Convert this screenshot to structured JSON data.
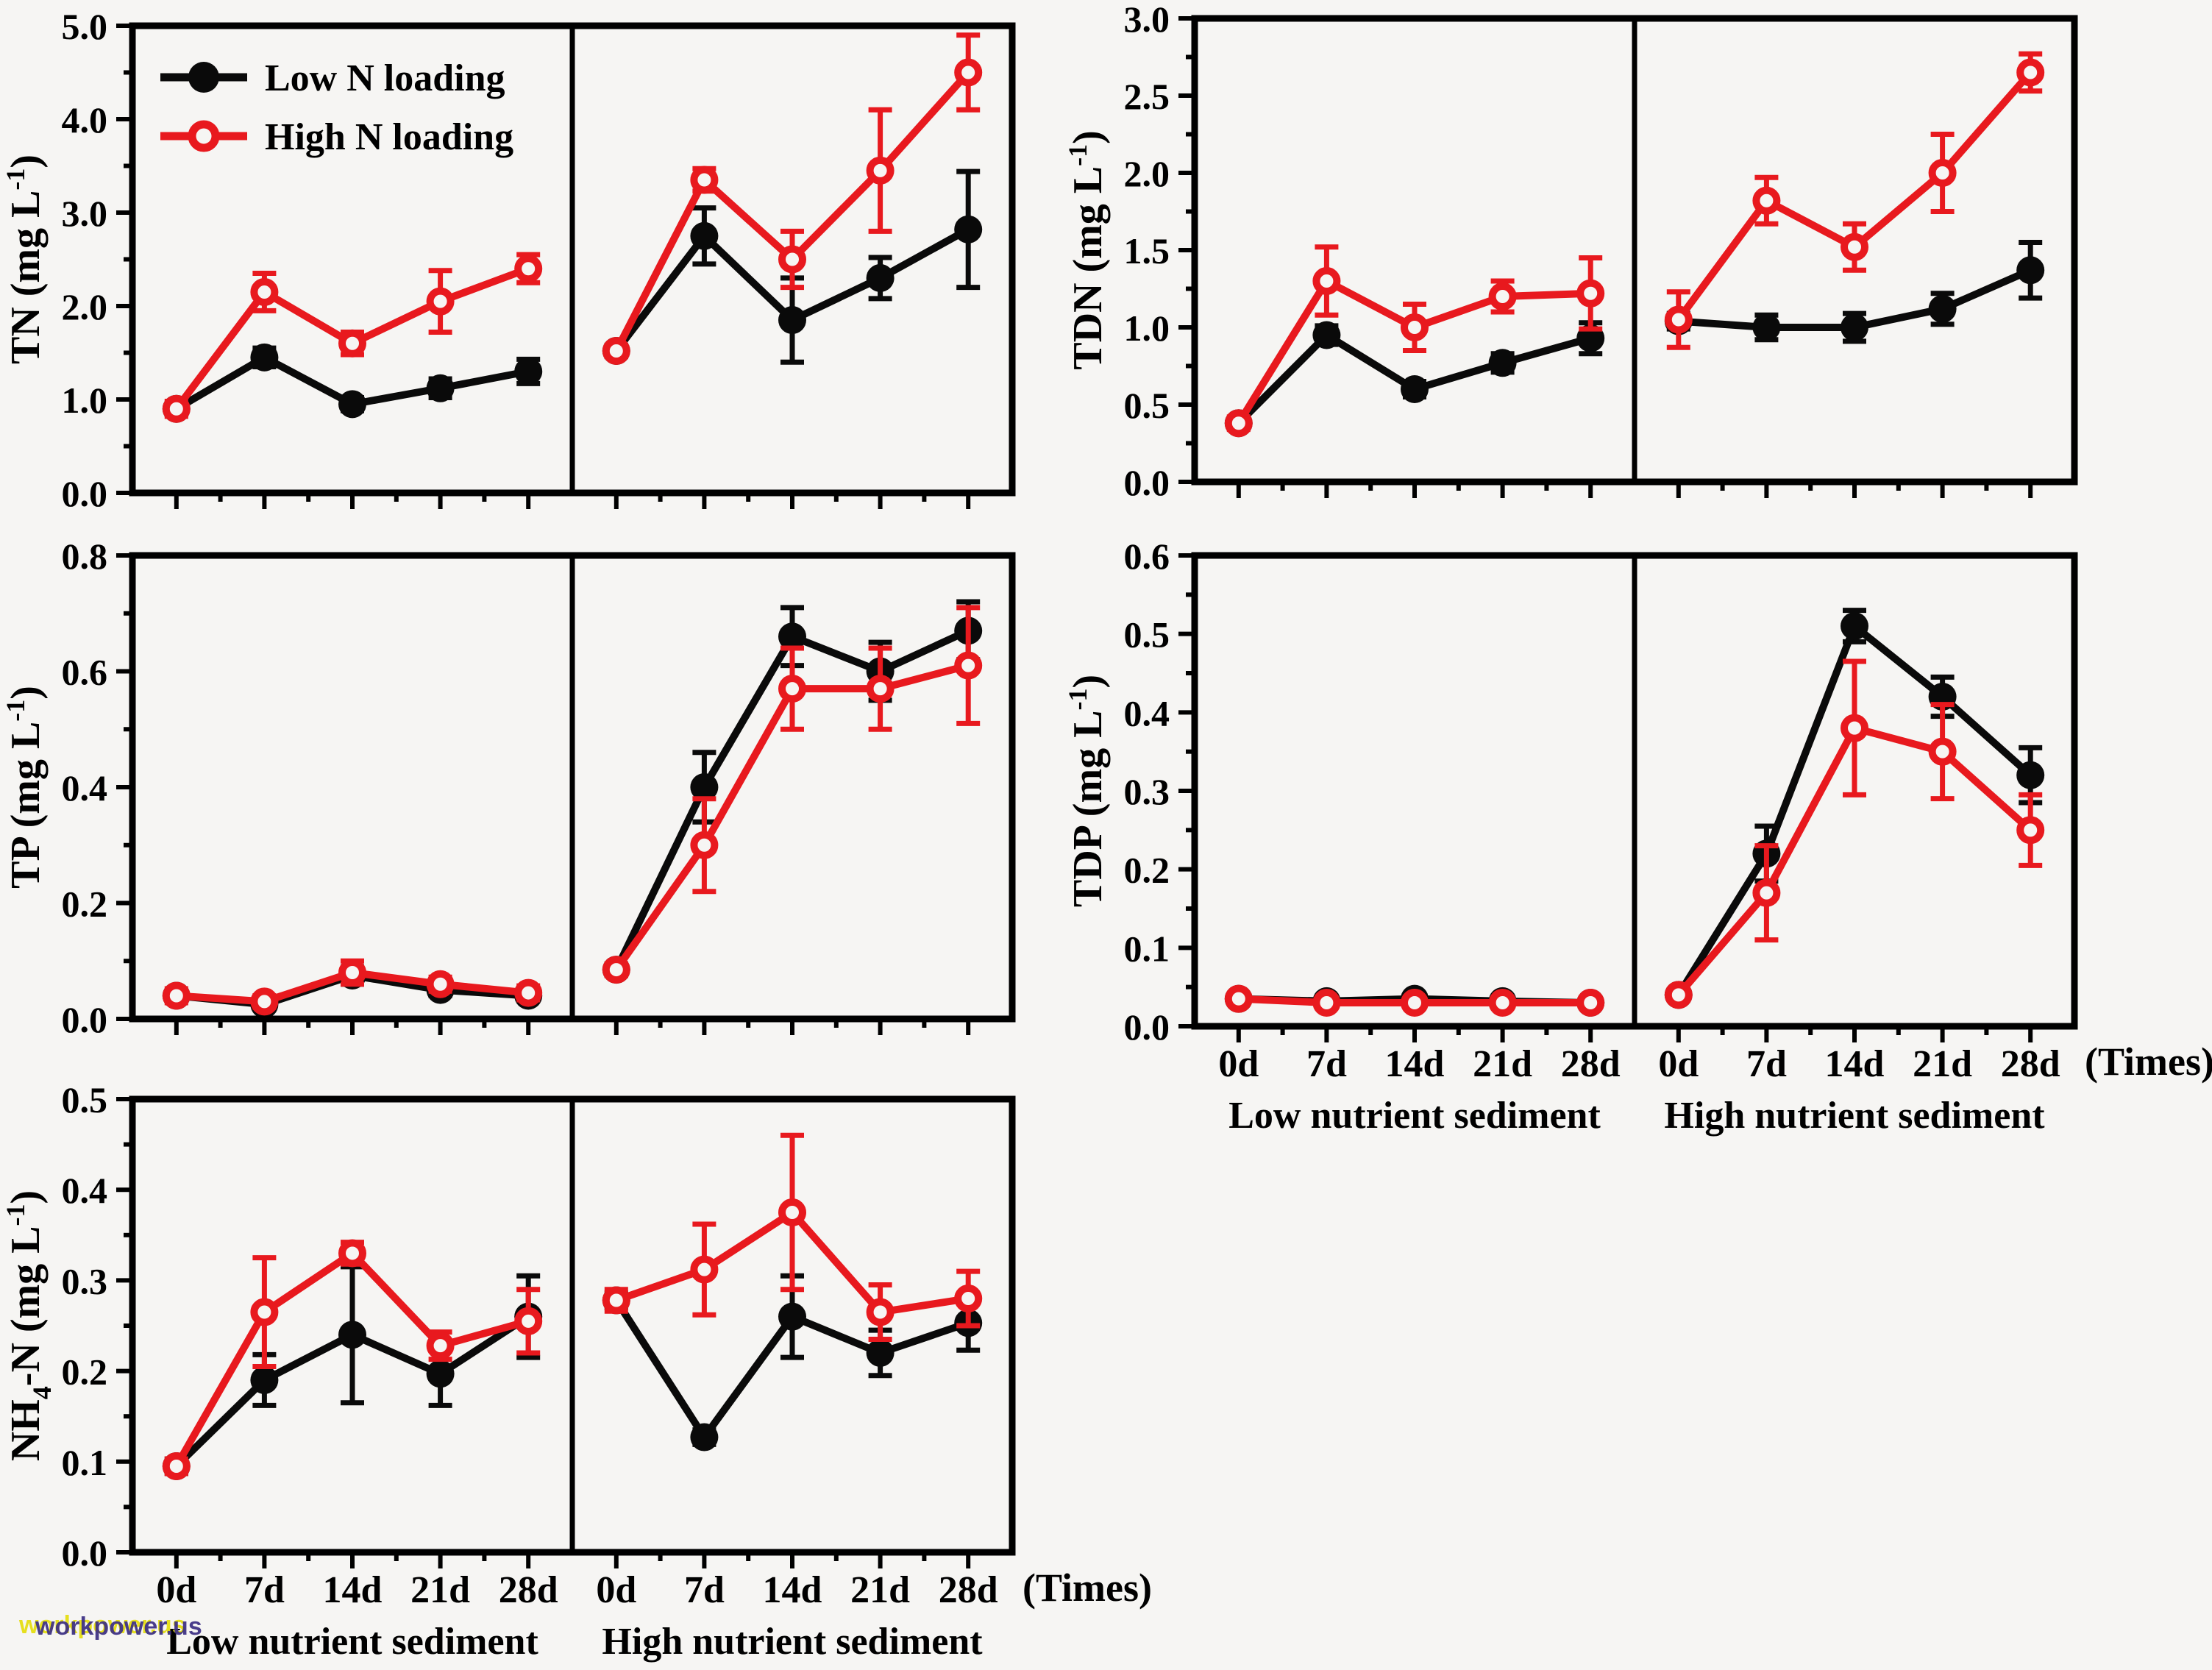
{
  "figure": {
    "background": "#f6f5f3",
    "colors": {
      "black": "#0a0a0a",
      "red": "#e8191e",
      "axis": "#000000",
      "text": "#000000"
    },
    "watermark": {
      "text": "workpower.us",
      "back_color": "#e6df1e",
      "front_color": "#3b2e83"
    }
  },
  "legend": {
    "position": "top-left-of-TN-panel",
    "items": [
      {
        "label": "Low N loading",
        "marker": "filled-circle",
        "color_key": "black"
      },
      {
        "label": "High N loading",
        "marker": "open-circle",
        "color_key": "red"
      }
    ]
  },
  "x_axis": {
    "categories": [
      "0d",
      "7d",
      "14d",
      "21d",
      "28d"
    ],
    "suffix_label": "(Times)",
    "group_labels": [
      "Low nutrient sediment",
      "High nutrient sediment"
    ]
  },
  "chart_data": [
    {
      "type": "line",
      "id": "tn",
      "ylabel_parts": [
        {
          "t": "TN (mg L"
        },
        {
          "t": "-1",
          "style": "sup"
        },
        {
          "t": ")"
        }
      ],
      "ylim": [
        0,
        5
      ],
      "ytick_major": 1.0,
      "ytick_minor": 0.5,
      "ytick_decimals": 1,
      "grid": false,
      "show_x_tick_labels": false,
      "show_group_labels": false,
      "show_times_label": false,
      "groups": [
        {
          "name": "Low nutrient sediment",
          "series": [
            {
              "name": "Low N loading",
              "color_key": "black",
              "values": [
                0.9,
                1.45,
                0.95,
                1.12,
                1.3
              ],
              "errors": [
                0.06,
                0.1,
                0.07,
                0.1,
                0.13
              ]
            },
            {
              "name": "High N loading",
              "color_key": "red",
              "values": [
                0.9,
                2.15,
                1.6,
                2.05,
                2.4
              ],
              "errors": [
                0.08,
                0.2,
                0.12,
                0.33,
                0.15
              ]
            }
          ]
        },
        {
          "name": "High nutrient sediment",
          "series": [
            {
              "name": "Low N loading",
              "color_key": "black",
              "values": [
                1.52,
                2.75,
                1.85,
                2.3,
                2.82
              ],
              "errors": [
                0.06,
                0.3,
                0.45,
                0.22,
                0.62
              ]
            },
            {
              "name": "High N loading",
              "color_key": "red",
              "values": [
                1.52,
                3.35,
                2.5,
                3.45,
                4.5
              ],
              "errors": [
                0.06,
                0.12,
                0.3,
                0.65,
                0.4
              ]
            }
          ]
        }
      ]
    },
    {
      "type": "line",
      "id": "tdn",
      "ylabel_parts": [
        {
          "t": "TDN (mg L"
        },
        {
          "t": "-1",
          "style": "sup"
        },
        {
          "t": ")"
        }
      ],
      "ylim": [
        0,
        3
      ],
      "ytick_major": 0.5,
      "ytick_minor": 0.25,
      "ytick_decimals": 1,
      "grid": false,
      "show_x_tick_labels": false,
      "show_group_labels": false,
      "show_times_label": false,
      "groups": [
        {
          "name": "Low nutrient sediment",
          "series": [
            {
              "name": "Low N loading",
              "color_key": "black",
              "values": [
                0.38,
                0.95,
                0.6,
                0.77,
                0.93
              ],
              "errors": [
                0.03,
                0.06,
                0.05,
                0.06,
                0.1
              ]
            },
            {
              "name": "High N loading",
              "color_key": "red",
              "values": [
                0.38,
                1.3,
                1.0,
                1.2,
                1.22
              ],
              "errors": [
                0.04,
                0.22,
                0.15,
                0.1,
                0.23
              ]
            }
          ]
        },
        {
          "name": "High nutrient sediment",
          "series": [
            {
              "name": "Low N loading",
              "color_key": "black",
              "values": [
                1.04,
                1.0,
                1.0,
                1.12,
                1.37
              ],
              "errors": [
                0.05,
                0.08,
                0.09,
                0.1,
                0.18
              ]
            },
            {
              "name": "High N loading",
              "color_key": "red",
              "values": [
                1.05,
                1.82,
                1.52,
                2.0,
                2.65
              ],
              "errors": [
                0.18,
                0.15,
                0.15,
                0.25,
                0.12
              ]
            }
          ]
        }
      ]
    },
    {
      "type": "line",
      "id": "tp",
      "ylabel_parts": [
        {
          "t": "TP (mg L"
        },
        {
          "t": "-1",
          "style": "sup"
        },
        {
          "t": ")"
        }
      ],
      "ylim": [
        0,
        0.8
      ],
      "ytick_major": 0.2,
      "ytick_minor": 0.1,
      "ytick_decimals": 1,
      "grid": false,
      "show_x_tick_labels": false,
      "show_group_labels": false,
      "show_times_label": false,
      "groups": [
        {
          "name": "Low nutrient sediment",
          "series": [
            {
              "name": "Low N loading",
              "color_key": "black",
              "values": [
                0.04,
                0.025,
                0.075,
                0.05,
                0.04
              ],
              "errors": [
                0.008,
                0.008,
                0.015,
                0.01,
                0.008
              ]
            },
            {
              "name": "High N loading",
              "color_key": "red",
              "values": [
                0.04,
                0.03,
                0.08,
                0.06,
                0.045
              ],
              "errors": [
                0.012,
                0.01,
                0.02,
                0.012,
                0.012
              ]
            }
          ]
        },
        {
          "name": "High nutrient sediment",
          "series": [
            {
              "name": "Low N loading",
              "color_key": "black",
              "values": [
                0.085,
                0.4,
                0.66,
                0.6,
                0.67
              ],
              "errors": [
                0.01,
                0.06,
                0.05,
                0.05,
                0.05
              ]
            },
            {
              "name": "High N loading",
              "color_key": "red",
              "values": [
                0.085,
                0.3,
                0.57,
                0.57,
                0.61
              ],
              "errors": [
                0.01,
                0.08,
                0.07,
                0.07,
                0.1
              ]
            }
          ]
        }
      ]
    },
    {
      "type": "line",
      "id": "tdp",
      "ylabel_parts": [
        {
          "t": "TDP (mg L"
        },
        {
          "t": "-1",
          "style": "sup"
        },
        {
          "t": ")"
        }
      ],
      "ylim": [
        0,
        0.6
      ],
      "ytick_major": 0.1,
      "ytick_minor": 0.05,
      "ytick_decimals": 1,
      "grid": false,
      "show_x_tick_labels": true,
      "show_group_labels": true,
      "show_times_label": true,
      "groups": [
        {
          "name": "Low nutrient sediment",
          "series": [
            {
              "name": "Low N loading",
              "color_key": "black",
              "values": [
                0.035,
                0.032,
                0.035,
                0.032,
                0.03
              ],
              "errors": [
                0.005,
                0.005,
                0.006,
                0.005,
                0.005
              ]
            },
            {
              "name": "High N loading",
              "color_key": "red",
              "values": [
                0.035,
                0.03,
                0.03,
                0.03,
                0.03
              ],
              "errors": [
                0.006,
                0.006,
                0.006,
                0.006,
                0.006
              ]
            }
          ]
        },
        {
          "name": "High nutrient sediment",
          "series": [
            {
              "name": "Low N loading",
              "color_key": "black",
              "values": [
                0.04,
                0.22,
                0.51,
                0.42,
                0.32
              ],
              "errors": [
                0.006,
                0.035,
                0.02,
                0.025,
                0.035
              ]
            },
            {
              "name": "High N loading",
              "color_key": "red",
              "values": [
                0.04,
                0.17,
                0.38,
                0.35,
                0.25
              ],
              "errors": [
                0.006,
                0.06,
                0.085,
                0.06,
                0.045
              ]
            }
          ]
        }
      ]
    },
    {
      "type": "line",
      "id": "nh4",
      "ylabel_parts": [
        {
          "t": "NH"
        },
        {
          "t": "4",
          "style": "sub"
        },
        {
          "t": "-N (mg L"
        },
        {
          "t": "-1",
          "style": "sup"
        },
        {
          "t": ")"
        }
      ],
      "ylim": [
        0,
        0.5
      ],
      "ytick_major": 0.1,
      "ytick_minor": 0.05,
      "ytick_decimals": 1,
      "grid": false,
      "show_x_tick_labels": true,
      "show_group_labels": true,
      "show_times_label": true,
      "groups": [
        {
          "name": "Low nutrient sediment",
          "series": [
            {
              "name": "Low N loading",
              "color_key": "black",
              "values": [
                0.095,
                0.19,
                0.24,
                0.197,
                0.26
              ],
              "errors": [
                0.008,
                0.028,
                0.075,
                0.035,
                0.045
              ]
            },
            {
              "name": "High N loading",
              "color_key": "red",
              "values": [
                0.095,
                0.265,
                0.33,
                0.228,
                0.255
              ],
              "errors": [
                0.008,
                0.06,
                0.012,
                0.015,
                0.035
              ]
            }
          ]
        },
        {
          "name": "High nutrient sediment",
          "series": [
            {
              "name": "Low N loading",
              "color_key": "black",
              "values": [
                0.278,
                0.127,
                0.26,
                0.22,
                0.253
              ],
              "errors": [
                0.008,
                0.008,
                0.045,
                0.025,
                0.03
              ]
            },
            {
              "name": "High N loading",
              "color_key": "red",
              "values": [
                0.278,
                0.312,
                0.375,
                0.265,
                0.28
              ],
              "errors": [
                0.012,
                0.05,
                0.085,
                0.03,
                0.03
              ]
            }
          ]
        }
      ]
    }
  ]
}
